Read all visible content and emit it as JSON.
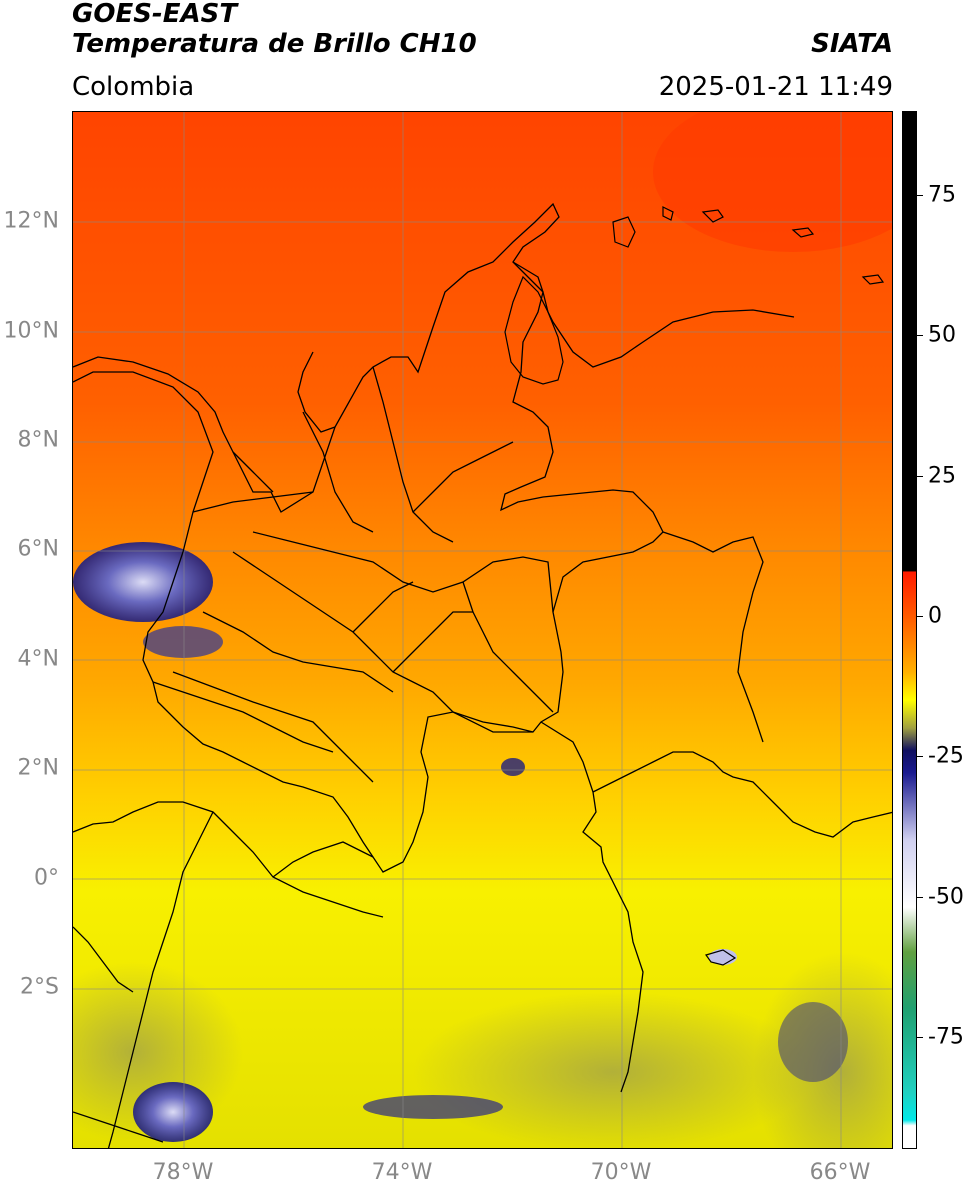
{
  "header": {
    "satellite": "GOES-EAST",
    "product": "Temperatura de Brillo CH10",
    "brand": "SIATA",
    "region": "Colombia",
    "timestamp": "2025-01-21 11:49"
  },
  "map": {
    "lat_range": [
      -4.8,
      14.0
    ],
    "lon_range": [
      -80.0,
      -65.0
    ],
    "lat_ticks": [
      {
        "value": 12,
        "label": "12°N"
      },
      {
        "value": 10,
        "label": "10°N"
      },
      {
        "value": 8,
        "label": "8°N"
      },
      {
        "value": 6,
        "label": "6°N"
      },
      {
        "value": 4,
        "label": "4°N"
      },
      {
        "value": 2,
        "label": "2°N"
      },
      {
        "value": 0,
        "label": "0°"
      },
      {
        "value": -2,
        "label": "2°S"
      }
    ],
    "lon_ticks": [
      {
        "value": -78,
        "label": "78°W"
      },
      {
        "value": -74,
        "label": "74°W"
      },
      {
        "value": -70,
        "label": "70°W"
      },
      {
        "value": -66,
        "label": "66°W"
      }
    ],
    "grid": true,
    "colors": {
      "north": "#ff4a00",
      "mid": "#ff9a00",
      "south": "#f2f000",
      "cloud_dark": "#1e1e80",
      "cloud_light": "#c8c8f0",
      "grid": "#888888"
    }
  },
  "colorbar": {
    "range": [
      -95,
      90
    ],
    "ticks": [
      {
        "value": 75,
        "label": "75"
      },
      {
        "value": 50,
        "label": "50"
      },
      {
        "value": 25,
        "label": "25"
      },
      {
        "value": 0,
        "label": "0"
      },
      {
        "value": -25,
        "label": "-25"
      },
      {
        "value": -50,
        "label": "-50"
      },
      {
        "value": -75,
        "label": "-75"
      }
    ],
    "stops": [
      {
        "value": 90,
        "color": "#000000"
      },
      {
        "value": 8,
        "color": "#000000"
      },
      {
        "value": 7.9,
        "color": "#ff1a00"
      },
      {
        "value": 0,
        "color": "#ff5a00"
      },
      {
        "value": -10,
        "color": "#ffb000"
      },
      {
        "value": -15,
        "color": "#ffff00"
      },
      {
        "value": -20,
        "color": "#a0a040"
      },
      {
        "value": -24,
        "color": "#101060"
      },
      {
        "value": -28,
        "color": "#1a1a90"
      },
      {
        "value": -40,
        "color": "#d0d0f0"
      },
      {
        "value": -52,
        "color": "#ffffff"
      },
      {
        "value": -60,
        "color": "#60a040"
      },
      {
        "value": -70,
        "color": "#20a070"
      },
      {
        "value": -85,
        "color": "#20d0c0"
      },
      {
        "value": -90,
        "color": "#00e8e8"
      },
      {
        "value": -91,
        "color": "#ffffff"
      },
      {
        "value": -95,
        "color": "#ffffff"
      }
    ]
  }
}
